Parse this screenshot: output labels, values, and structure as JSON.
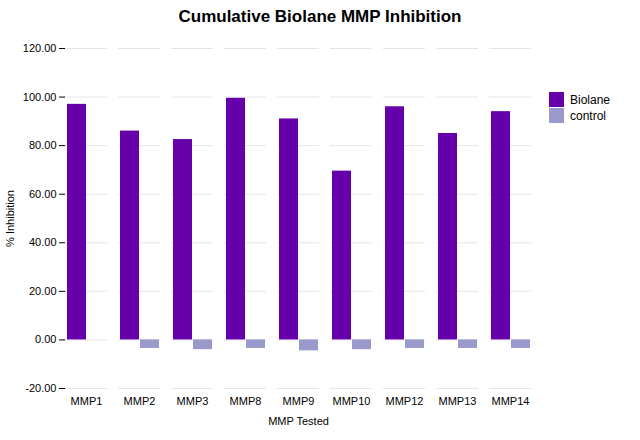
{
  "chart_data": {
    "type": "bar",
    "title": "Cumulative Biolane MMP Inhibition",
    "xlabel": "MMP Tested",
    "ylabel": "% Inhibition",
    "categories": [
      "MMP1",
      "MMP2",
      "MMP3",
      "MMP8",
      "MMP9",
      "MMP10",
      "MMP12",
      "MMP13",
      "MMP14"
    ],
    "series": [
      {
        "name": "Biolane",
        "color": "#6600AA",
        "values": [
          97.0,
          86.0,
          82.5,
          99.5,
          91.0,
          69.5,
          96.0,
          85.0,
          94.0
        ]
      },
      {
        "name": "control",
        "color": "#9999CC",
        "values": [
          0.0,
          -3.5,
          -4.0,
          -3.5,
          -4.5,
          -4.0,
          -3.5,
          -3.5,
          -3.5
        ]
      }
    ],
    "ylim": [
      -20,
      120
    ],
    "yticks": [
      {
        "value": -20,
        "label": "-20.00"
      },
      {
        "value": 0,
        "label": "0.00"
      },
      {
        "value": 20,
        "label": "20.00"
      },
      {
        "value": 40,
        "label": "40.00"
      },
      {
        "value": 60,
        "label": "60.00"
      },
      {
        "value": 80,
        "label": "80.00"
      },
      {
        "value": 100,
        "label": "100.00"
      },
      {
        "value": 120,
        "label": "120.00"
      }
    ],
    "grid": true,
    "legend": "right"
  }
}
